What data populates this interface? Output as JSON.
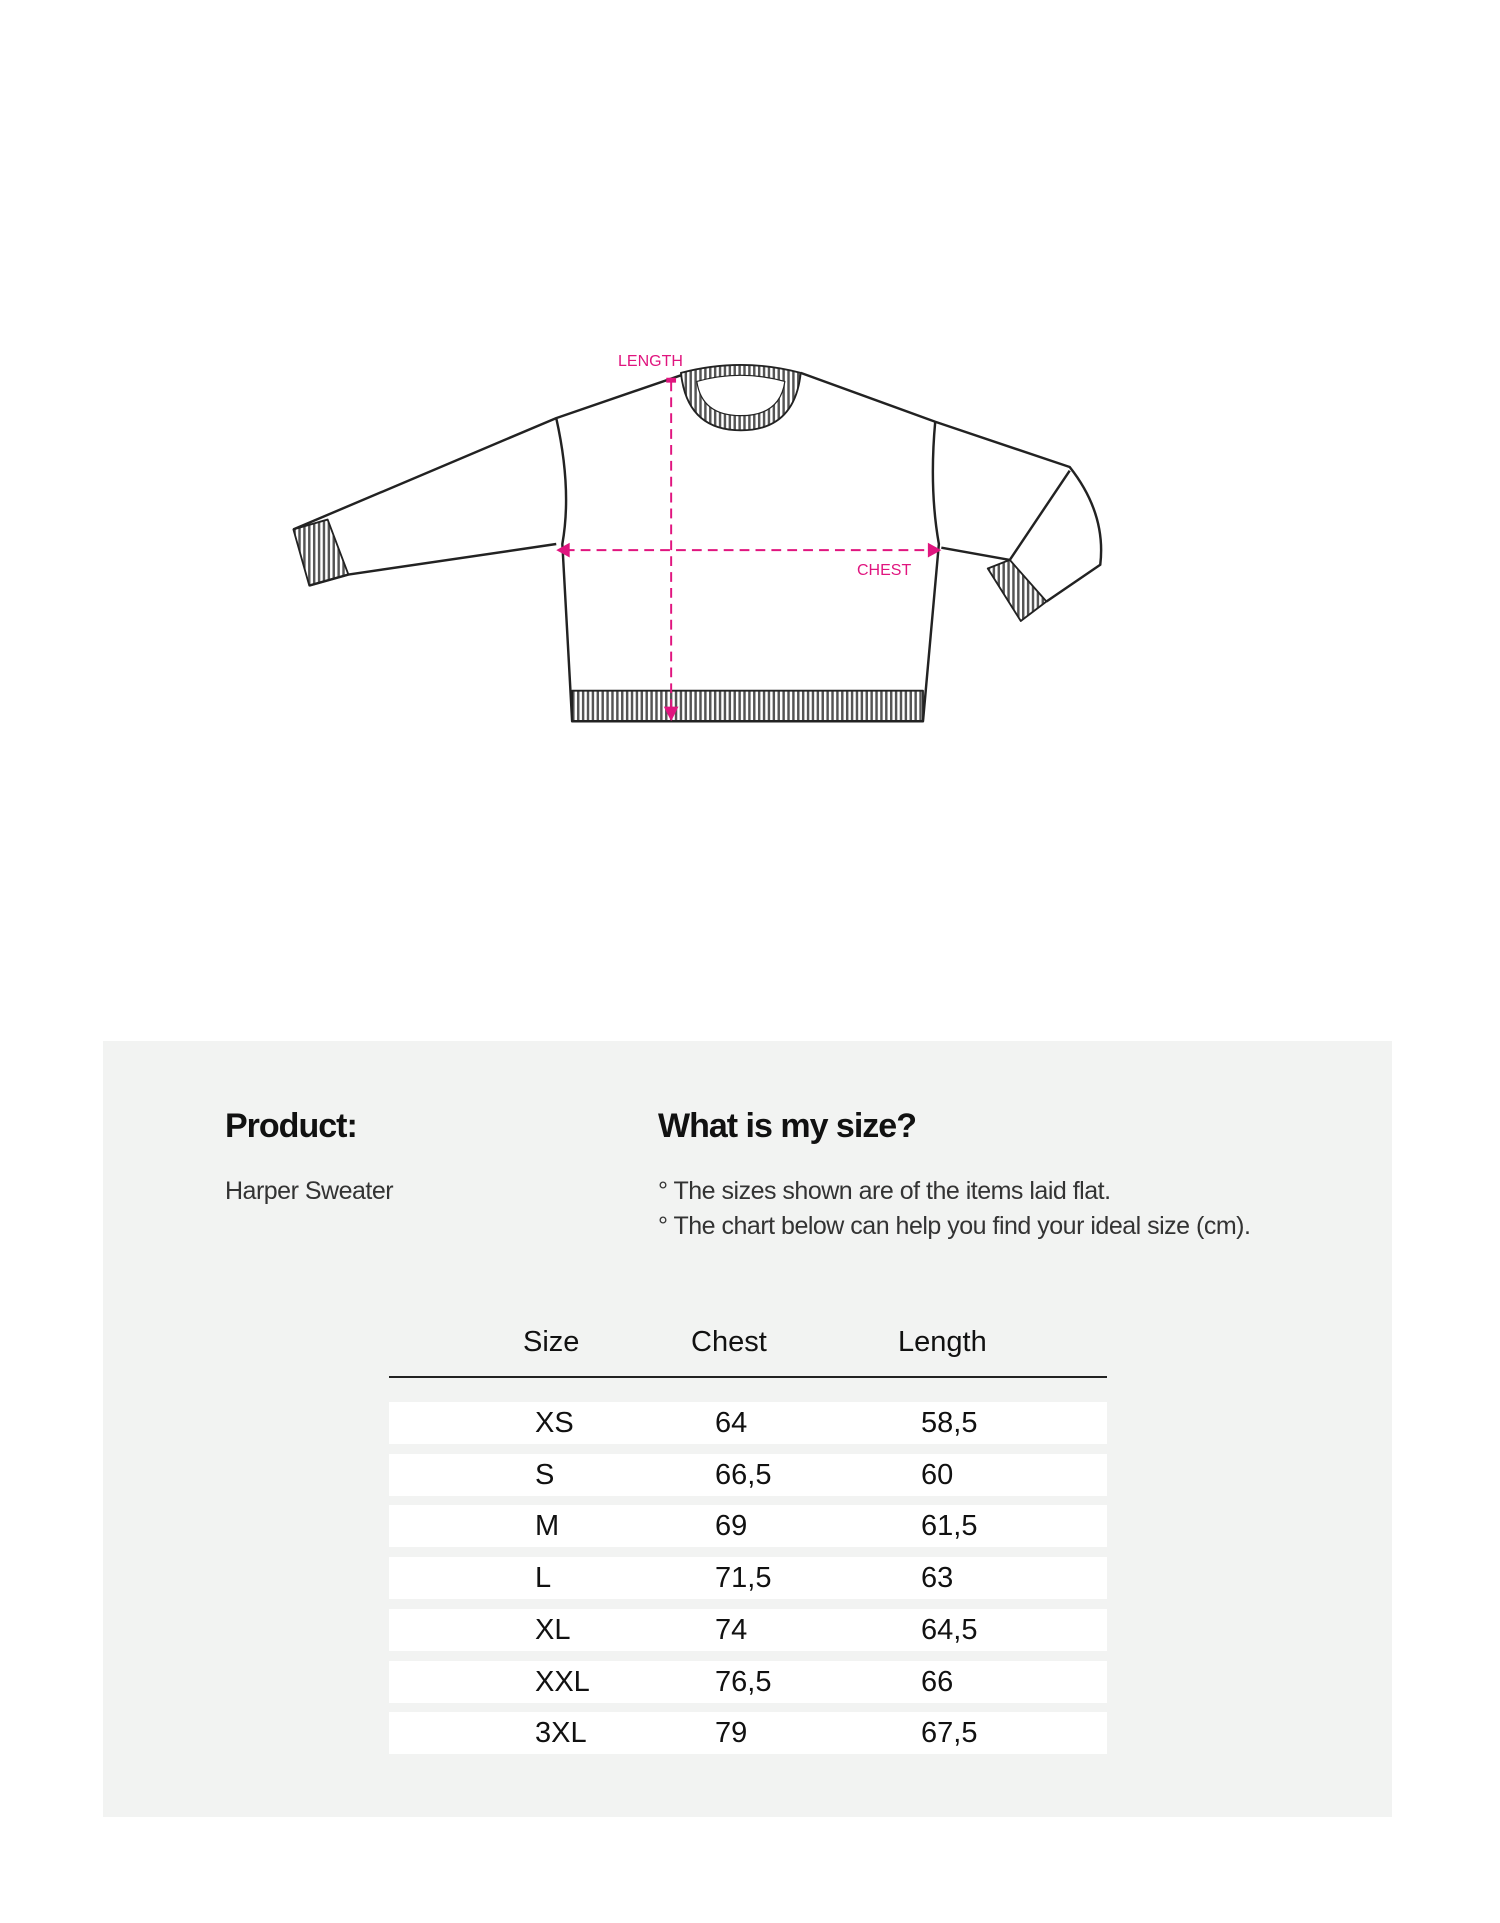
{
  "diagram": {
    "length_label": "LENGTH",
    "chest_label": "CHEST",
    "accent_color": "#e0157f"
  },
  "product": {
    "heading": "Product:",
    "name": "Harper Sweater"
  },
  "size_info": {
    "heading": "What is my size?",
    "notes": [
      "° The sizes shown are of the items laid flat.",
      "° The chart below can help you find your ideal size (cm)."
    ]
  },
  "table": {
    "headers": [
      "Size",
      "Chest",
      "Length"
    ],
    "rows": [
      [
        "XS",
        "64",
        "58,5"
      ],
      [
        "S",
        "66,5",
        "60"
      ],
      [
        "M",
        "69",
        "61,5"
      ],
      [
        "L",
        "71,5",
        "63"
      ],
      [
        "XL",
        "74",
        "64,5"
      ],
      [
        "XXL",
        "76,5",
        "66"
      ],
      [
        "3XL",
        "79",
        "67,5"
      ]
    ]
  }
}
